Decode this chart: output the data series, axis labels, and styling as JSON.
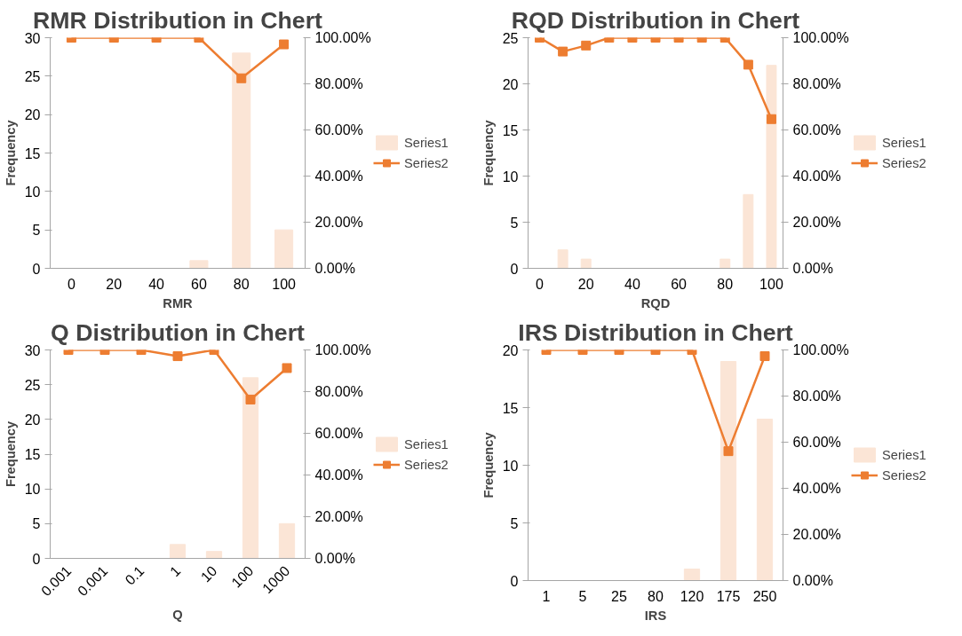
{
  "chart_data": [
    {
      "type": "bar",
      "title": "RMR Distribution in Chert",
      "xlabel": "RMR",
      "ylabel": "Frequency",
      "categories": [
        "0",
        "20",
        "40",
        "60",
        "80",
        "100"
      ],
      "series": [
        {
          "name": "Series1",
          "type": "bar",
          "color": "#fbe5d6",
          "values": [
            0,
            0,
            0,
            1,
            28,
            5
          ]
        },
        {
          "name": "Series2",
          "type": "line",
          "axis": "y2",
          "color": "#ed7d31",
          "marker": "square",
          "values": [
            100,
            100,
            100,
            100,
            82.4,
            97.1
          ]
        }
      ],
      "ylim": [
        0,
        30
      ],
      "yticks": [
        0,
        5,
        10,
        15,
        20,
        25,
        30
      ],
      "y2lim": [
        0,
        100
      ],
      "y2ticks": [
        {
          "value": 0,
          "label": "0.00%"
        },
        {
          "value": 20,
          "label": "20.00%"
        },
        {
          "value": 40,
          "label": "40.00%"
        },
        {
          "value": 60,
          "label": "60.00%"
        },
        {
          "value": 80,
          "label": "80.00%"
        },
        {
          "value": 100,
          "label": "100.00%"
        }
      ],
      "legend": "right"
    },
    {
      "type": "bar",
      "title": "RQD Distribution in Chert",
      "xlabel": "RQD",
      "ylabel": "Frequency",
      "categories": [
        "0",
        null,
        "20",
        null,
        "40",
        null,
        "60",
        null,
        "80",
        null,
        "100"
      ],
      "series": [
        {
          "name": "Series1",
          "type": "bar",
          "color": "#fbe5d6",
          "values": [
            0,
            2,
            1,
            0,
            0,
            0,
            0,
            0,
            1,
            8,
            22
          ]
        },
        {
          "name": "Series2",
          "type": "line",
          "axis": "y2",
          "color": "#ed7d31",
          "marker": "square",
          "values": [
            100,
            94,
            96.6,
            100,
            100,
            100,
            100,
            100,
            100,
            88.3,
            64.7
          ]
        }
      ],
      "ylim": [
        0,
        25
      ],
      "yticks": [
        0,
        5,
        10,
        15,
        20,
        25
      ],
      "y2lim": [
        0,
        100
      ],
      "y2ticks": [
        {
          "value": 0,
          "label": "0.00%"
        },
        {
          "value": 20,
          "label": "20.00%"
        },
        {
          "value": 40,
          "label": "40.00%"
        },
        {
          "value": 60,
          "label": "60.00%"
        },
        {
          "value": 80,
          "label": "80.00%"
        },
        {
          "value": 100,
          "label": "100.00%"
        }
      ],
      "legend": "right"
    },
    {
      "type": "bar",
      "title": "Q Distribution in Chert",
      "xlabel": "Q",
      "ylabel": "Frequency",
      "categories": [
        "0.001",
        "0.001",
        "0.1",
        "1",
        "10",
        "100",
        "1000"
      ],
      "series": [
        {
          "name": "Series1",
          "type": "bar",
          "color": "#fbe5d6",
          "values": [
            0,
            0,
            0,
            2,
            1,
            26,
            5
          ]
        },
        {
          "name": "Series2",
          "type": "line",
          "axis": "y2",
          "color": "#ed7d31",
          "marker": "square",
          "values": [
            100,
            100,
            100,
            97,
            100,
            76.2,
            91.3
          ]
        }
      ],
      "ylim": [
        0,
        30
      ],
      "yticks": [
        0,
        5,
        10,
        15,
        20,
        25,
        30
      ],
      "y2lim": [
        0,
        100
      ],
      "y2ticks": [
        {
          "value": 0,
          "label": "0.00%"
        },
        {
          "value": 20,
          "label": "20.00%"
        },
        {
          "value": 40,
          "label": "40.00%"
        },
        {
          "value": 60,
          "label": "60.00%"
        },
        {
          "value": 80,
          "label": "80.00%"
        },
        {
          "value": 100,
          "label": "100.00%"
        }
      ],
      "legend": "right"
    },
    {
      "type": "bar",
      "title": "IRS Distribution in Chert",
      "xlabel": "IRS",
      "ylabel": "Frequency",
      "categories": [
        "1",
        "5",
        "25",
        "80",
        "120",
        "175",
        "250"
      ],
      "series": [
        {
          "name": "Series1",
          "type": "bar",
          "color": "#fbe5d6",
          "values": [
            0,
            0,
            0,
            0,
            1,
            19,
            14
          ]
        },
        {
          "name": "Series2",
          "type": "line",
          "axis": "y2",
          "color": "#ed7d31",
          "marker": "square",
          "values": [
            100,
            100,
            100,
            100,
            100,
            56.1,
            97.3
          ]
        }
      ],
      "ylim": [
        0,
        20
      ],
      "yticks": [
        0,
        5,
        10,
        15,
        20
      ],
      "y2lim": [
        0,
        100
      ],
      "y2ticks": [
        {
          "value": 0,
          "label": "0.00%"
        },
        {
          "value": 20,
          "label": "20.00%"
        },
        {
          "value": 40,
          "label": "40.00%"
        },
        {
          "value": 60,
          "label": "60.00%"
        },
        {
          "value": 80,
          "label": "80.00%"
        },
        {
          "value": 100,
          "label": "100.00%"
        }
      ],
      "legend": "right"
    }
  ]
}
